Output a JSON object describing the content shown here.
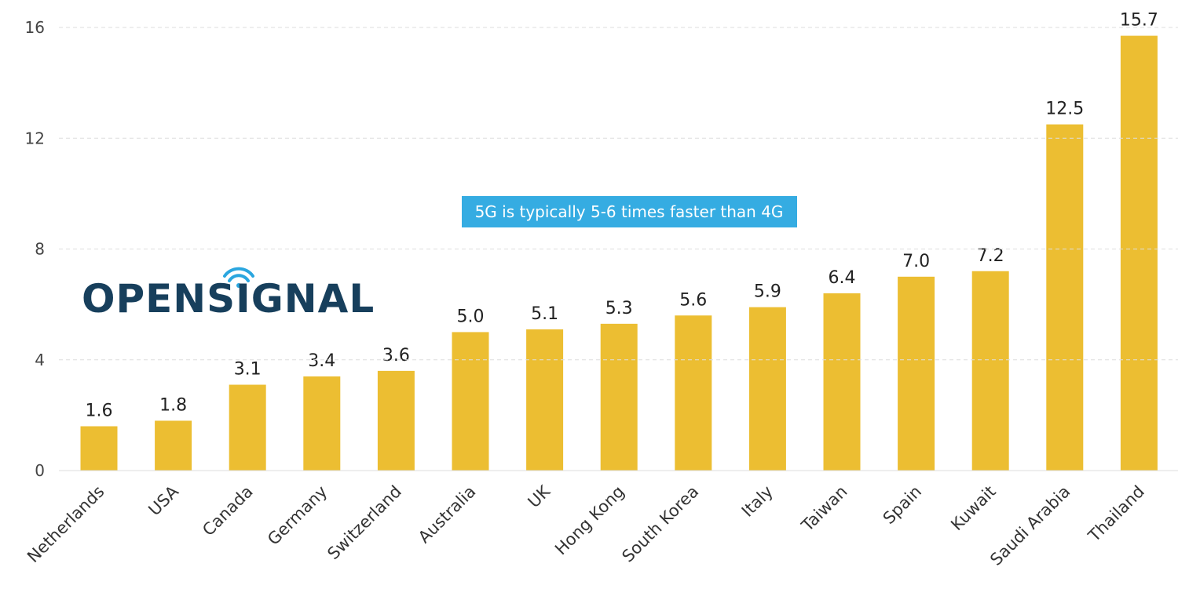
{
  "chart_data": {
    "type": "bar",
    "categories": [
      "Netherlands",
      "USA",
      "Canada",
      "Germany",
      "Switzerland",
      "Australia",
      "UK",
      "Hong Kong",
      "South Korea",
      "Italy",
      "Taiwan",
      "Spain",
      "Kuwait",
      "Saudi Arabia",
      "Thailand"
    ],
    "values": [
      1.6,
      1.8,
      3.1,
      3.4,
      3.6,
      5.0,
      5.1,
      5.3,
      5.6,
      5.9,
      6.4,
      7.0,
      7.2,
      12.5,
      15.7
    ],
    "value_labels": [
      "1.6",
      "1.8",
      "3.1",
      "3.4",
      "3.6",
      "5.0",
      "5.1",
      "5.3",
      "5.6",
      "5.9",
      "6.4",
      "7.0",
      "7.2",
      "12.5",
      "15.7"
    ],
    "color": "#ecbe32",
    "ylim": [
      0,
      16
    ],
    "yticks": [
      0,
      4,
      8,
      12,
      16
    ],
    "grid": true,
    "annotation": "5G is typically 5-6 times faster than 4G",
    "logo": "OPENSIGNAL"
  }
}
